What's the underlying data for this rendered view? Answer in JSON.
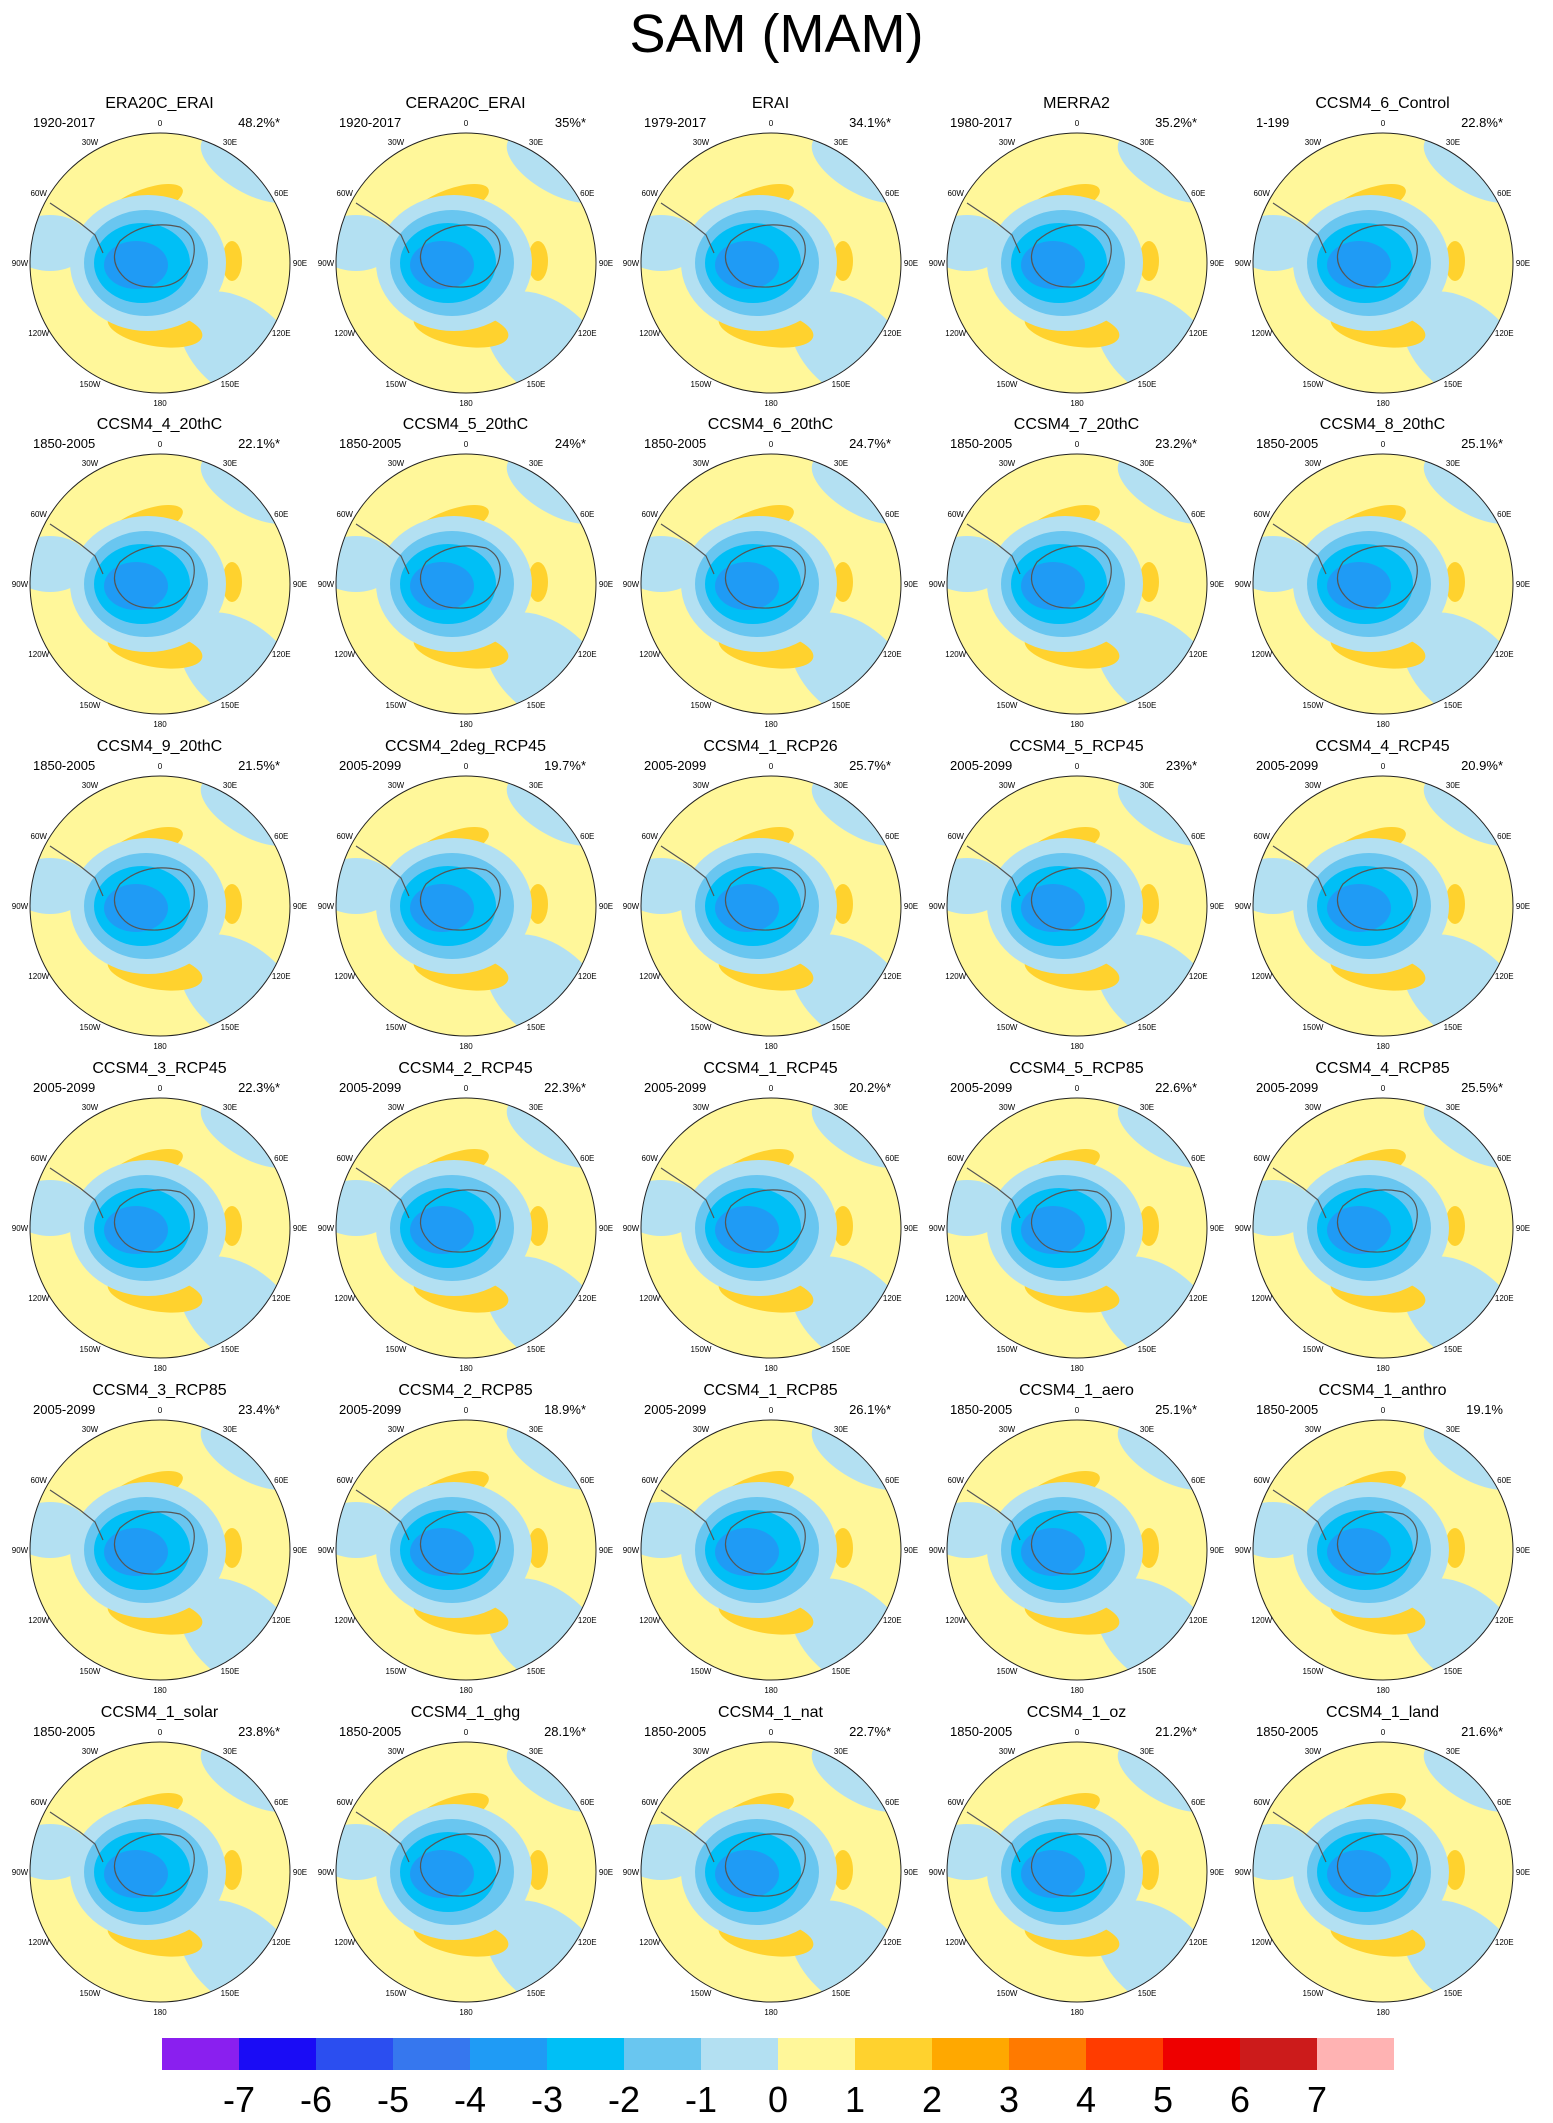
{
  "title": "SAM (MAM)",
  "colors": {
    "ocean_pos": "#fff79a",
    "ocean_neg": "#b3e0f2",
    "coast": "#555555",
    "border": "#222222"
  },
  "map_longitude_labels": [
    "0",
    "30E",
    "60E",
    "90E",
    "120E",
    "150E",
    "180",
    "150W",
    "120W",
    "90W",
    "60W",
    "30W"
  ],
  "panels": [
    {
      "title": "ERA20C_ERAI",
      "period": "1920-2017",
      "pct": "48.2%*"
    },
    {
      "title": "CERA20C_ERAI",
      "period": "1920-2017",
      "pct": "35%*"
    },
    {
      "title": "ERAI",
      "period": "1979-2017",
      "pct": "34.1%*"
    },
    {
      "title": "MERRA2",
      "period": "1980-2017",
      "pct": "35.2%*"
    },
    {
      "title": "CCSM4_6_Control",
      "period": "1-199",
      "pct": "22.8%*"
    },
    {
      "title": "CCSM4_4_20thC",
      "period": "1850-2005",
      "pct": "22.1%*"
    },
    {
      "title": "CCSM4_5_20thC",
      "period": "1850-2005",
      "pct": "24%*"
    },
    {
      "title": "CCSM4_6_20thC",
      "period": "1850-2005",
      "pct": "24.7%*"
    },
    {
      "title": "CCSM4_7_20thC",
      "period": "1850-2005",
      "pct": "23.2%*"
    },
    {
      "title": "CCSM4_8_20thC",
      "period": "1850-2005",
      "pct": "25.1%*"
    },
    {
      "title": "CCSM4_9_20thC",
      "period": "1850-2005",
      "pct": "21.5%*"
    },
    {
      "title": "CCSM4_2deg_RCP45",
      "period": "2005-2099",
      "pct": "19.7%*"
    },
    {
      "title": "CCSM4_1_RCP26",
      "period": "2005-2099",
      "pct": "25.7%*"
    },
    {
      "title": "CCSM4_5_RCP45",
      "period": "2005-2099",
      "pct": "23%*"
    },
    {
      "title": "CCSM4_4_RCP45",
      "period": "2005-2099",
      "pct": "20.9%*"
    },
    {
      "title": "CCSM4_3_RCP45",
      "period": "2005-2099",
      "pct": "22.3%*"
    },
    {
      "title": "CCSM4_2_RCP45",
      "period": "2005-2099",
      "pct": "22.3%*"
    },
    {
      "title": "CCSM4_1_RCP45",
      "period": "2005-2099",
      "pct": "20.2%*"
    },
    {
      "title": "CCSM4_5_RCP85",
      "period": "2005-2099",
      "pct": "22.6%*"
    },
    {
      "title": "CCSM4_4_RCP85",
      "period": "2005-2099",
      "pct": "25.5%*"
    },
    {
      "title": "CCSM4_3_RCP85",
      "period": "2005-2099",
      "pct": "23.4%*"
    },
    {
      "title": "CCSM4_2_RCP85",
      "period": "2005-2099",
      "pct": "18.9%*"
    },
    {
      "title": "CCSM4_1_RCP85",
      "period": "2005-2099",
      "pct": "26.1%*"
    },
    {
      "title": "CCSM4_1_aero",
      "period": "1850-2005",
      "pct": "25.1%*"
    },
    {
      "title": "CCSM4_1_anthro",
      "period": "1850-2005",
      "pct": "19.1%"
    },
    {
      "title": "CCSM4_1_solar",
      "period": "1850-2005",
      "pct": "23.8%*"
    },
    {
      "title": "CCSM4_1_ghg",
      "period": "1850-2005",
      "pct": "28.1%*"
    },
    {
      "title": "CCSM4_1_nat",
      "period": "1850-2005",
      "pct": "22.7%*"
    },
    {
      "title": "CCSM4_1_oz",
      "period": "1850-2005",
      "pct": "21.2%*"
    },
    {
      "title": "CCSM4_1_land",
      "period": "1850-2005",
      "pct": "21.6%*"
    }
  ],
  "colorbar": {
    "colors": [
      "#8a1fef",
      "#1a0cf5",
      "#2b4ef0",
      "#3677ee",
      "#1f9bf5",
      "#00bff6",
      "#69c6f0",
      "#b3e0f2",
      "#fff79a",
      "#ffd22e",
      "#ffa800",
      "#ff7a00",
      "#ff3c00",
      "#ee0000",
      "#cc1b1b",
      "#ffb3b3"
    ],
    "labels": [
      "-7",
      "-6",
      "-5",
      "-4",
      "-3",
      "-2",
      "-1",
      "0",
      "1",
      "2",
      "3",
      "4",
      "5",
      "6",
      "7"
    ]
  }
}
